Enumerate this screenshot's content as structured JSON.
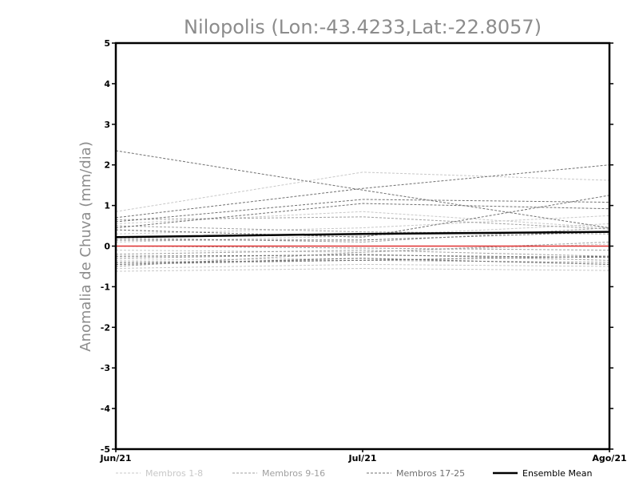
{
  "chart_data": {
    "type": "line",
    "title": "Nilopolis (Lon:-43.4233,Lat:-22.8057)",
    "ylabel": "Anomalia de Chuva (mm/dia)",
    "xlabel": "",
    "categories": [
      "Jun/21",
      "Jul/21",
      "Ago/21"
    ],
    "ylim": [
      -5,
      5
    ],
    "yticks": [
      5,
      4,
      3,
      2,
      1,
      0,
      -1,
      -2,
      -3,
      -4,
      -5
    ],
    "grid": false,
    "legend_position": "bottom",
    "legend": [
      {
        "label": "Membros 1-8",
        "color": "#c8c8c8",
        "style": "dashed"
      },
      {
        "label": "Membros 9-16",
        "color": "#a0a0a0",
        "style": "dashed"
      },
      {
        "label": "Membros 17-25",
        "color": "#707070",
        "style": "dashed"
      },
      {
        "label": "Ensemble Mean",
        "color": "#000000",
        "style": "solid"
      }
    ],
    "zero_line_color": "#e03030",
    "series": [
      {
        "group": 1,
        "values": [
          0.85,
          1.82,
          1.62
        ]
      },
      {
        "group": 1,
        "values": [
          0.55,
          0.85,
          0.45
        ]
      },
      {
        "group": 1,
        "values": [
          0.3,
          0.45,
          0.75
        ]
      },
      {
        "group": 1,
        "values": [
          0.1,
          0.25,
          0.55
        ]
      },
      {
        "group": 1,
        "values": [
          -0.1,
          -0.15,
          0.05
        ]
      },
      {
        "group": 1,
        "values": [
          -0.35,
          -0.3,
          -0.45
        ]
      },
      {
        "group": 1,
        "values": [
          -0.55,
          -0.45,
          -0.5
        ]
      },
      {
        "group": 1,
        "values": [
          -0.62,
          -0.55,
          -0.6
        ]
      },
      {
        "group": 2,
        "values": [
          0.65,
          0.72,
          0.42
        ]
      },
      {
        "group": 2,
        "values": [
          0.5,
          0.35,
          0.3
        ]
      },
      {
        "group": 2,
        "values": [
          0.2,
          0.1,
          0.45
        ]
      },
      {
        "group": 2,
        "values": [
          0.0,
          -0.05,
          -0.1
        ]
      },
      {
        "group": 2,
        "values": [
          -0.2,
          -0.1,
          -0.25
        ]
      },
      {
        "group": 2,
        "values": [
          -0.3,
          -0.2,
          -0.35
        ]
      },
      {
        "group": 2,
        "values": [
          -0.45,
          -0.35,
          -0.4
        ]
      },
      {
        "group": 2,
        "values": [
          -0.5,
          -0.15,
          0.1
        ]
      },
      {
        "group": 3,
        "values": [
          2.35,
          1.38,
          0.45
        ]
      },
      {
        "group": 3,
        "values": [
          0.7,
          1.42,
          2.0
        ]
      },
      {
        "group": 3,
        "values": [
          0.6,
          1.15,
          1.08
        ]
      },
      {
        "group": 3,
        "values": [
          0.45,
          1.05,
          0.92
        ]
      },
      {
        "group": 3,
        "values": [
          0.4,
          0.22,
          1.25
        ]
      },
      {
        "group": 3,
        "values": [
          0.15,
          0.15,
          0.35
        ]
      },
      {
        "group": 3,
        "values": [
          -0.25,
          -0.22,
          -0.28
        ]
      },
      {
        "group": 3,
        "values": [
          -0.4,
          -0.35,
          -0.25
        ]
      },
      {
        "group": 3,
        "values": [
          -0.45,
          -0.3,
          -0.45
        ]
      }
    ],
    "ensemble_mean": [
      0.22,
      0.3,
      0.35
    ],
    "zero_reference": [
      0.0,
      0.0,
      0.0
    ]
  }
}
